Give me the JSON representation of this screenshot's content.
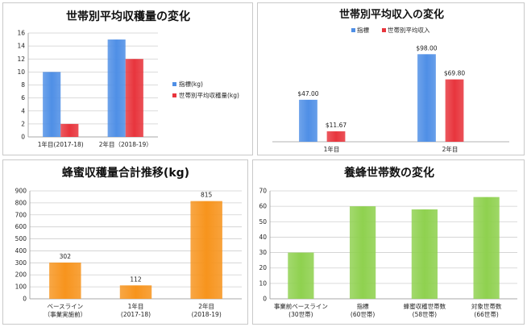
{
  "chart_data": [
    {
      "type": "bar",
      "title": "世帯別平均収穫量の変化",
      "categories": [
        "1年目(2017-18)",
        "2年目（2018-19）"
      ],
      "series": [
        {
          "name": "指標(kg)",
          "values": [
            10,
            15
          ],
          "color": "#4f8fe6"
        },
        {
          "name": "世帯別平均収穫量(kg)",
          "values": [
            2,
            12
          ],
          "color": "#e8353d"
        }
      ],
      "ylim": [
        0,
        16
      ],
      "yticks": [
        0,
        2,
        4,
        6,
        8,
        10,
        12,
        14,
        16
      ],
      "grid": true,
      "legend": "right"
    },
    {
      "type": "bar",
      "title": "世帯別平均収入の変化",
      "categories": [
        "1年目",
        "2年目"
      ],
      "series": [
        {
          "name": "指標",
          "values": [
            47.0,
            98.0
          ],
          "labels": [
            "$47.00",
            "$98.00"
          ],
          "color": "#4f8fe6"
        },
        {
          "name": "世帯別平均収入",
          "values": [
            11.67,
            69.8
          ],
          "labels": [
            "$11.67",
            "$69.80"
          ],
          "color": "#e8353d"
        }
      ],
      "ylim": [
        0,
        110
      ],
      "grid": false,
      "legend": "top"
    },
    {
      "type": "bar",
      "title": "蜂蜜収穫量合計推移(kg)",
      "categories": [
        [
          "ベースライン",
          "（事業実施前）"
        ],
        [
          "1年目",
          "(2017-18)"
        ],
        [
          "2年目",
          "(2018-19)"
        ]
      ],
      "series": [
        {
          "values": [
            302,
            112,
            815
          ],
          "labels": [
            "302",
            "112",
            "815"
          ],
          "color": "#f7941d"
        }
      ],
      "ylim": [
        0,
        900
      ],
      "yticks": [
        0,
        100,
        200,
        300,
        400,
        500,
        600,
        700,
        800,
        900
      ],
      "grid": true
    },
    {
      "type": "bar",
      "title": "養蜂世帯数の変化",
      "categories": [
        [
          "事業前ベースライン",
          "(30世帯)"
        ],
        [
          "指標",
          "(60世帯)"
        ],
        [
          "蜂蜜収穫世帯数",
          "(58世帯)"
        ],
        [
          "対象世帯数",
          "(66世帯)"
        ]
      ],
      "series": [
        {
          "values": [
            30,
            60,
            58,
            66
          ],
          "color": "#8fd14f"
        }
      ],
      "ylim": [
        0,
        70
      ],
      "yticks": [
        0,
        10,
        20,
        30,
        40,
        50,
        60,
        70
      ],
      "grid": true
    }
  ]
}
